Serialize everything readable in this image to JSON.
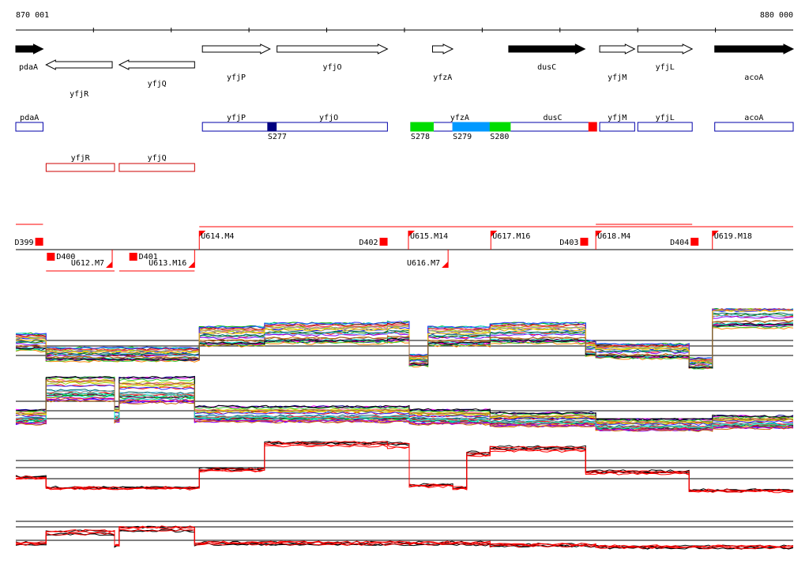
{
  "axis": {
    "start_label": "870 001",
    "end_label": "880 000",
    "start": 870001,
    "end": 880000
  },
  "genes": [
    {
      "name": "pdaA",
      "start": 870001,
      "end": 870351,
      "strand": "+",
      "fill": "#000000"
    },
    {
      "name": "yfjR",
      "start": 870390,
      "end": 871241,
      "strand": "-",
      "fill": "#ffffff"
    },
    {
      "name": "yfjQ",
      "start": 871331,
      "end": 872301,
      "strand": "-",
      "fill": "#ffffff"
    },
    {
      "name": "yfjP",
      "start": 872401,
      "end": 873271,
      "strand": "+",
      "fill": "#ffffff"
    },
    {
      "name": "yfjO",
      "start": 873361,
      "end": 874781,
      "strand": "+",
      "fill": "#ffffff"
    },
    {
      "name": "yfzA",
      "start": 875361,
      "end": 875621,
      "strand": "+",
      "fill": "#ffffff"
    },
    {
      "name": "dusC",
      "start": 876341,
      "end": 877321,
      "strand": "+",
      "fill": "#000000"
    },
    {
      "name": "yfjM",
      "start": 877511,
      "end": 877961,
      "strand": "+",
      "fill": "#ffffff"
    },
    {
      "name": "yfjL",
      "start": 878001,
      "end": 878701,
      "strand": "+",
      "fill": "#ffffff"
    },
    {
      "name": "acoA",
      "start": 878991,
      "end": 880000,
      "strand": "+",
      "fill": "#000000"
    }
  ],
  "segments_fwd": [
    {
      "name": "pdaA",
      "start": 870001,
      "end": 870351
    },
    {
      "name": "yfjP",
      "start": 872401,
      "end": 873271
    },
    {
      "name": "yfjO",
      "start": 873271,
      "end": 874781
    },
    {
      "name": "yfzA",
      "start": 875081,
      "end": 876341
    },
    {
      "name": "dusC",
      "start": 876341,
      "end": 877471
    },
    {
      "name": "yfjM",
      "start": 877511,
      "end": 877961
    },
    {
      "name": "yfjL",
      "start": 878001,
      "end": 878701
    },
    {
      "name": "acoA",
      "start": 878991,
      "end": 880000
    }
  ],
  "segments_rev": [
    {
      "name": "yfjR",
      "start": 870391,
      "end": 871271
    },
    {
      "name": "yfjQ",
      "start": 871331,
      "end": 872301
    }
  ],
  "sites": [
    {
      "name": "S277",
      "start": 873241,
      "end": 873351,
      "color": "#000080"
    },
    {
      "name": "S278",
      "start": 875081,
      "end": 875371,
      "color": "#00dd00"
    },
    {
      "name": "S279",
      "start": 875621,
      "end": 876101,
      "color": "#0099ff"
    },
    {
      "name": "S280",
      "start": 876101,
      "end": 876361,
      "color": "#00dd00"
    },
    {
      "name": "",
      "start": 877371,
      "end": 877471,
      "color": "#ff0000"
    }
  ],
  "units_upper": [
    {
      "name": "D399",
      "kind": "D",
      "x": 870251
    },
    {
      "name": "U614.M4",
      "kind": "U",
      "x": 872361
    },
    {
      "name": "D402",
      "kind": "D",
      "x": 874681
    },
    {
      "name": "U615.M14",
      "kind": "U",
      "x": 875051
    },
    {
      "name": "U617.M16",
      "kind": "U",
      "x": 876111
    },
    {
      "name": "D403",
      "kind": "D",
      "x": 877261
    },
    {
      "name": "U618.M4",
      "kind": "U",
      "x": 877461
    },
    {
      "name": "D404",
      "kind": "D",
      "x": 878681
    },
    {
      "name": "U619.M18",
      "kind": "U",
      "x": 878961
    }
  ],
  "units_lower": [
    {
      "name": "D400",
      "kind": "D",
      "x": 870401
    },
    {
      "name": "U612.M7",
      "kind": "U",
      "x": 871241
    },
    {
      "name": "D401",
      "kind": "D",
      "x": 871461
    },
    {
      "name": "U613.M16",
      "kind": "U",
      "x": 872301
    },
    {
      "name": "U616.M7",
      "kind": "U",
      "x": 875561
    }
  ],
  "tracks": [
    {
      "name": "expression-panel-1",
      "count": 26,
      "colors": [
        "#ff0000",
        "#00aa00",
        "#0000ff",
        "#ff00ff",
        "#00cccc",
        "#cccc00",
        "#ff8800",
        "#8800ff",
        "#008800",
        "#880000",
        "#000088",
        "#ff6699",
        "#66ccff",
        "#99cc00",
        "#cc6600",
        "#006666",
        "#660066",
        "#999999",
        "#ff3333",
        "#33cc33",
        "#3333ff",
        "#cc0099",
        "#00ffcc",
        "#ffcc00",
        "#000000",
        "#996633"
      ],
      "levels": [
        [
          870001,
          0.45
        ],
        [
          870390,
          0.25
        ],
        [
          872361,
          0.55
        ],
        [
          873201,
          0.6
        ],
        [
          874781,
          0.62
        ],
        [
          875061,
          0.15
        ],
        [
          875301,
          0.55
        ],
        [
          876101,
          0.6
        ],
        [
          877331,
          0.35
        ],
        [
          877461,
          0.3
        ],
        [
          878661,
          0.1
        ],
        [
          878961,
          0.9
        ],
        [
          880000,
          0.9
        ]
      ],
      "spread": 0.35
    },
    {
      "name": "expression-panel-2",
      "count": 26,
      "colors": [
        "#ff0000",
        "#00aa00",
        "#0000ff",
        "#ff00ff",
        "#00cccc",
        "#cccc00",
        "#ff8800",
        "#8800ff",
        "#008800",
        "#880000",
        "#000088",
        "#ff6699",
        "#66ccff",
        "#99cc00",
        "#cc6600",
        "#006666",
        "#660066",
        "#999999",
        "#ff3333",
        "#33cc33",
        "#3333ff",
        "#cc0099",
        "#00ffcc",
        "#ffcc00",
        "#000000",
        "#996633"
      ],
      "levels": [
        [
          870001,
          0.25
        ],
        [
          870390,
          0.8
        ],
        [
          871271,
          0.3
        ],
        [
          871331,
          0.75
        ],
        [
          872301,
          0.3
        ],
        [
          875061,
          0.25
        ],
        [
          876101,
          0.2
        ],
        [
          877461,
          0.1
        ],
        [
          878961,
          0.15
        ],
        [
          880000,
          0.15
        ]
      ],
      "spread": 0.5
    },
    {
      "name": "expression-panel-3",
      "count": 6,
      "colors": [
        "#000000",
        "#000000",
        "#000000",
        "#ff0000",
        "#ff0000",
        "#ff0000"
      ],
      "levels": [
        [
          870001,
          0.3
        ],
        [
          870390,
          0.1
        ],
        [
          872361,
          0.45
        ],
        [
          873201,
          0.95
        ],
        [
          874781,
          0.92
        ],
        [
          875061,
          0.15
        ],
        [
          875621,
          0.1
        ],
        [
          875801,
          0.75
        ],
        [
          876101,
          0.85
        ],
        [
          877331,
          0.4
        ],
        [
          878661,
          0.05
        ],
        [
          880000,
          0.05
        ]
      ],
      "spread": 0.12
    },
    {
      "name": "expression-panel-4",
      "count": 6,
      "colors": [
        "#000000",
        "#000000",
        "#000000",
        "#ff0000",
        "#ff0000",
        "#ff0000"
      ],
      "levels": [
        [
          870001,
          0.15
        ],
        [
          870390,
          0.45
        ],
        [
          871271,
          0.1
        ],
        [
          871331,
          0.55
        ],
        [
          872301,
          0.15
        ],
        [
          875061,
          0.15
        ],
        [
          876101,
          0.1
        ],
        [
          877461,
          0.05
        ],
        [
          880000,
          0.05
        ]
      ],
      "spread": 0.15
    }
  ]
}
